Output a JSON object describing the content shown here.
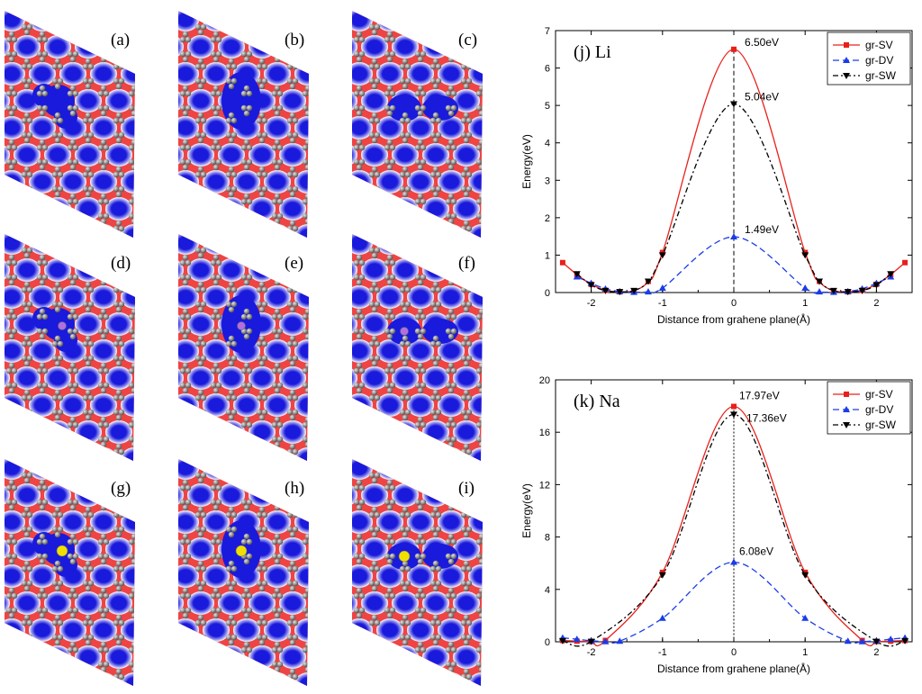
{
  "panels": [
    {
      "label": "(a)",
      "defect": "SV",
      "atom": "none"
    },
    {
      "label": "(b)",
      "defect": "DV",
      "atom": "none"
    },
    {
      "label": "(c)",
      "defect": "SW",
      "atom": "none"
    },
    {
      "label": "(d)",
      "defect": "SV",
      "atom": "Li"
    },
    {
      "label": "(e)",
      "defect": "DV",
      "atom": "Li"
    },
    {
      "label": "(f)",
      "defect": "SW",
      "atom": "Li"
    },
    {
      "label": "(g)",
      "defect": "SV",
      "atom": "Na"
    },
    {
      "label": "(h)",
      "defect": "DV",
      "atom": "Na"
    },
    {
      "label": "(i)",
      "defect": "SW",
      "atom": "Na"
    }
  ],
  "colors": {
    "density_high": "#ee4444",
    "density_low": "#1a1adc",
    "carbon_atom": "#8c8c8c",
    "li_atom": "#b070e0",
    "na_atom": "#f0e000"
  },
  "chart_data": [
    {
      "type": "line",
      "title": "(j) Li",
      "xlabel": "Distance from grahene plane(Å)",
      "ylabel": "Energy(eV)",
      "xlim": [
        -2.5,
        2.5
      ],
      "ylim": [
        0,
        7
      ],
      "xticks": [
        -2,
        -1,
        0,
        1,
        2
      ],
      "yticks": [
        0,
        1,
        2,
        3,
        4,
        5,
        6,
        7
      ],
      "legend_position": "top-right",
      "series": [
        {
          "name": "gr-SV",
          "color": "#e8201a",
          "dash": "solid",
          "marker": "square",
          "x": [
            -2.4,
            -2.2,
            -2.0,
            -1.8,
            -1.6,
            -1.4,
            -1.2,
            -1.0,
            0.0,
            1.0,
            1.2,
            1.4,
            1.6,
            1.8,
            2.0,
            2.2,
            2.4
          ],
          "y": [
            0.8,
            0.48,
            0.22,
            0.06,
            0.02,
            0.05,
            0.3,
            1.07,
            6.5,
            1.07,
            0.3,
            0.05,
            0.02,
            0.06,
            0.22,
            0.48,
            0.8
          ]
        },
        {
          "name": "gr-DV",
          "color": "#1a3ce8",
          "dash": "dash",
          "marker": "triangle-up",
          "x": [
            -2.2,
            -2.0,
            -1.8,
            -1.6,
            -1.4,
            -1.2,
            -1.0,
            0.0,
            1.0,
            1.2,
            1.4,
            1.6,
            1.8,
            2.0,
            2.2
          ],
          "y": [
            0.42,
            0.25,
            0.1,
            0.03,
            0.01,
            0.02,
            0.12,
            1.49,
            0.12,
            0.02,
            0.01,
            0.03,
            0.1,
            0.25,
            0.42
          ]
        },
        {
          "name": "gr-SW",
          "color": "#000000",
          "dash": "dashdot",
          "marker": "triangle-down",
          "x": [
            -2.2,
            -2.0,
            -1.8,
            -1.6,
            -1.4,
            -1.2,
            -1.0,
            0.0,
            1.0,
            1.2,
            1.4,
            1.6,
            1.8,
            2.0,
            2.2
          ],
          "y": [
            0.5,
            0.2,
            0.05,
            0.02,
            0.05,
            0.3,
            1.0,
            5.04,
            1.0,
            0.3,
            0.05,
            0.02,
            0.05,
            0.2,
            0.5
          ]
        }
      ],
      "annotations": [
        {
          "text": "6.50eV",
          "x": 0.0,
          "y": 6.5
        },
        {
          "text": "5.04eV",
          "x": 0.0,
          "y": 5.04
        },
        {
          "text": "1.49eV",
          "x": 0.0,
          "y": 1.49
        }
      ]
    },
    {
      "type": "line",
      "title": "(k) Na",
      "xlabel": "Distance from grahene plane(Å)",
      "ylabel": "Energy(eV)",
      "xlim": [
        -2.5,
        2.5
      ],
      "ylim": [
        0,
        20
      ],
      "xticks": [
        -2,
        -1,
        0,
        1,
        2
      ],
      "yticks": [
        0,
        4,
        8,
        12,
        16,
        20
      ],
      "legend_position": "top-right",
      "series": [
        {
          "name": "gr-SV",
          "color": "#e8201a",
          "dash": "solid",
          "marker": "square",
          "x": [
            -2.4,
            -2.2,
            -2.0,
            -1.8,
            -1.0,
            0.0,
            1.0,
            1.8,
            2.0,
            2.2,
            2.4
          ],
          "y": [
            0.1,
            0.05,
            0.02,
            0.1,
            5.3,
            17.97,
            5.3,
            0.1,
            0.02,
            0.05,
            0.1
          ]
        },
        {
          "name": "gr-DV",
          "color": "#1a3ce8",
          "dash": "dash",
          "marker": "triangle-up",
          "x": [
            -2.4,
            -2.2,
            -2.0,
            -1.8,
            -1.6,
            -1.0,
            0.0,
            1.0,
            1.6,
            1.8,
            2.0,
            2.2,
            2.4
          ],
          "y": [
            0.3,
            0.2,
            0.08,
            0.02,
            0.05,
            1.8,
            6.08,
            1.8,
            0.05,
            0.02,
            0.08,
            0.2,
            0.3
          ]
        },
        {
          "name": "gr-SW",
          "color": "#000000",
          "dash": "dashdot",
          "marker": "triangle-down",
          "x": [
            -2.4,
            -2.0,
            -1.0,
            0.0,
            1.0,
            2.0,
            2.4
          ],
          "y": [
            0.08,
            0.03,
            5.1,
            17.36,
            5.1,
            0.03,
            0.08
          ]
        }
      ],
      "annotations": [
        {
          "text": "17.97eV",
          "x": 0.0,
          "y": 17.97
        },
        {
          "text": "17.36eV",
          "x": 0.0,
          "y": 17.36
        },
        {
          "text": "6.08eV",
          "x": 0.0,
          "y": 6.08
        }
      ]
    }
  ]
}
